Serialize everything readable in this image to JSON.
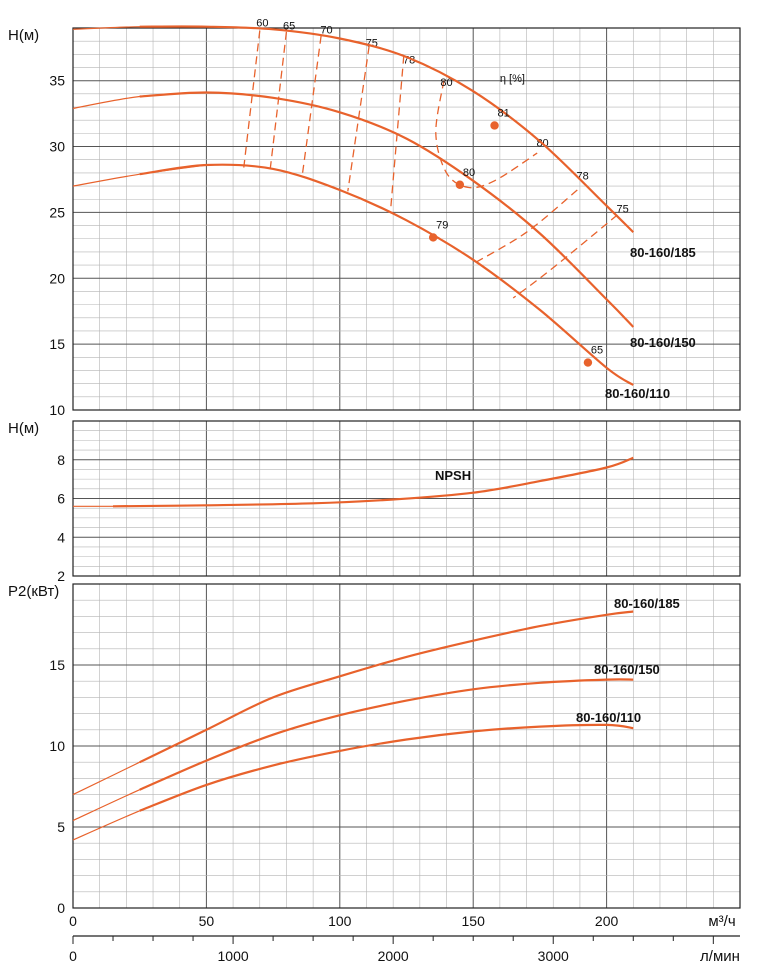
{
  "colors": {
    "curve": "#e8622c",
    "grid_minor": "#b5b5b5",
    "grid_major": "#555555",
    "text": "#111111"
  },
  "chart_data": [
    {
      "type": "line",
      "panel": "head",
      "ylabel": "H(м)",
      "ylim": [
        10,
        39
      ],
      "yticks": [
        10,
        15,
        20,
        25,
        30,
        35
      ],
      "xlim": [
        0,
        250
      ],
      "grid": true,
      "series": [
        {
          "name": "80-160/185",
          "x": [
            0,
            25,
            50,
            75,
            100,
            125,
            150,
            175,
            200,
            210
          ],
          "values": [
            38.9,
            39.1,
            39.1,
            38.9,
            38.2,
            36.8,
            34.2,
            30.4,
            25.5,
            23.5
          ],
          "markers": [
            {
              "x": 158,
              "y": 31.6,
              "label": "81"
            }
          ]
        },
        {
          "name": "80-160/150",
          "x": [
            0,
            25,
            50,
            75,
            100,
            125,
            150,
            175,
            200,
            210
          ],
          "values": [
            32.9,
            33.8,
            34.1,
            33.7,
            32.6,
            30.6,
            27.4,
            23.4,
            18.4,
            16.3
          ],
          "markers": [
            {
              "x": 145,
              "y": 27.1,
              "label": "80"
            }
          ]
        },
        {
          "name": "80-160/110",
          "x": [
            0,
            25,
            50,
            75,
            100,
            125,
            150,
            175,
            200,
            210
          ],
          "values": [
            27.0,
            27.9,
            28.6,
            28.3,
            26.7,
            24.4,
            21.4,
            17.6,
            13.2,
            11.9
          ],
          "markers": [
            {
              "x": 135,
              "y": 23.1,
              "label": "79"
            },
            {
              "x": 193,
              "y": 13.6,
              "label": "65"
            }
          ]
        }
      ],
      "efficiency_label": "η [%]",
      "efficiency_lines": [
        {
          "label": "60",
          "points": [
            [
              70,
              38.8
            ],
            [
              64,
              28.4
            ]
          ]
        },
        {
          "label": "65",
          "points": [
            [
              80,
              38.7
            ],
            [
              74,
              28.4
            ]
          ]
        },
        {
          "label": "70",
          "points": [
            [
              93,
              38.4
            ],
            [
              86,
              27.9
            ]
          ]
        },
        {
          "label": "75",
          "points": [
            [
              111,
              37.6
            ],
            [
              103,
              26.6
            ]
          ]
        },
        {
          "label": "78",
          "points": [
            [
              124,
              36.9
            ],
            [
              119,
              25.1
            ]
          ]
        },
        {
          "label": "80",
          "points": [
            [
              139,
              35.0
            ],
            [
              136,
              31.0
            ],
            [
              140,
              28.0
            ],
            [
              148,
              26.9
            ],
            [
              158,
              27.4
            ],
            [
              174,
              29.5
            ]
          ]
        },
        {
          "label": "78",
          "points": [
            [
              189,
              26.7
            ],
            [
              170,
              23.5
            ],
            [
              150,
              21.1
            ]
          ]
        },
        {
          "label": "75",
          "points": [
            [
              204,
              24.8
            ],
            [
              180,
              20.8
            ],
            [
              165,
              18.5
            ]
          ]
        }
      ],
      "efficiency_label_points": [
        {
          "label": "60",
          "x": 71,
          "y": 39.1
        },
        {
          "label": "65",
          "x": 81,
          "y": 38.9
        },
        {
          "label": "70",
          "x": 95,
          "y": 38.6
        },
        {
          "label": "75",
          "x": 112,
          "y": 37.6
        },
        {
          "label": "78",
          "x": 126,
          "y": 36.3
        },
        {
          "label": "80",
          "x": 140,
          "y": 34.6
        },
        {
          "label": "80",
          "x": 176,
          "y": 30.0
        },
        {
          "label": "78",
          "x": 191,
          "y": 27.5
        },
        {
          "label": "75",
          "x": 206,
          "y": 25.0
        }
      ]
    },
    {
      "type": "line",
      "panel": "npsh",
      "ylabel": "H(м)",
      "ylim": [
        2,
        10
      ],
      "yticks": [
        2,
        4,
        6,
        8
      ],
      "xlim": [
        0,
        250
      ],
      "grid": true,
      "series": [
        {
          "name": "NPSH",
          "x": [
            0,
            15,
            50,
            90,
            120,
            150,
            175,
            200,
            210
          ],
          "values": [
            5.6,
            5.6,
            5.65,
            5.75,
            5.95,
            6.3,
            6.9,
            7.6,
            8.1
          ]
        }
      ]
    },
    {
      "type": "line",
      "panel": "power",
      "ylabel": "P2(кВт)",
      "ylim": [
        0,
        20
      ],
      "yticks": [
        0,
        5,
        10,
        15
      ],
      "xlim": [
        0,
        250
      ],
      "xlabel": "м³/ч",
      "xticks": [
        0,
        50,
        100,
        150,
        200
      ],
      "x2label": "л/мин",
      "x2ticks": [
        0,
        1000,
        2000,
        3000
      ],
      "grid": true,
      "series": [
        {
          "name": "80-160/185",
          "x": [
            0,
            25,
            50,
            75,
            100,
            125,
            150,
            175,
            200,
            210
          ],
          "values": [
            7.0,
            9.0,
            11.0,
            13.0,
            14.3,
            15.5,
            16.5,
            17.4,
            18.1,
            18.3
          ]
        },
        {
          "name": "80-160/150",
          "x": [
            0,
            25,
            50,
            75,
            100,
            125,
            150,
            175,
            200,
            210
          ],
          "values": [
            5.4,
            7.3,
            9.1,
            10.7,
            11.9,
            12.8,
            13.5,
            13.9,
            14.1,
            14.1
          ]
        },
        {
          "name": "80-160/110",
          "x": [
            0,
            25,
            50,
            75,
            100,
            125,
            150,
            175,
            200,
            210
          ],
          "values": [
            4.2,
            6.0,
            7.6,
            8.8,
            9.7,
            10.4,
            10.9,
            11.2,
            11.3,
            11.1
          ]
        }
      ]
    }
  ]
}
